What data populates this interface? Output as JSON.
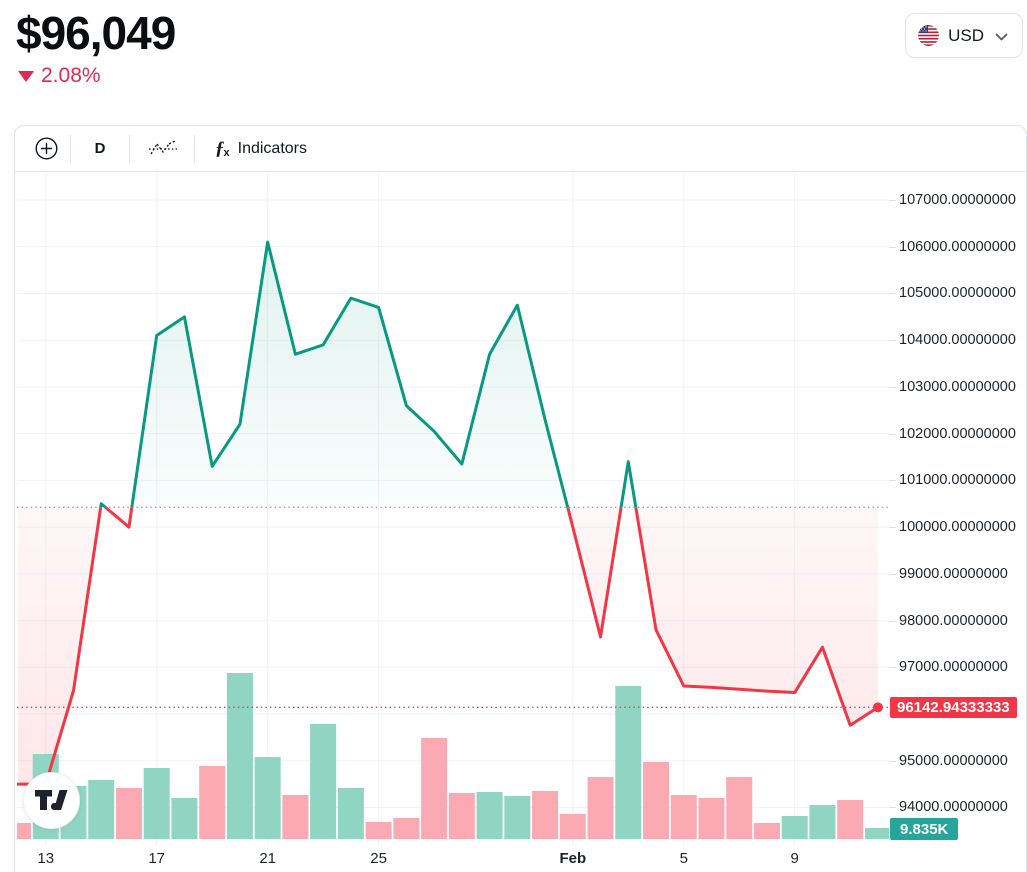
{
  "header": {
    "price": "$96,049",
    "change": "2.08%",
    "change_direction": "down",
    "currency": {
      "label": "USD",
      "flag": "us-flag"
    }
  },
  "toolbar": {
    "add_symbol_icon": "plus-circle",
    "interval": "D",
    "chart_style_icon": "baseline-style",
    "indicators_icon": "fx",
    "indicators_label": "Indicators"
  },
  "chart_data": {
    "type": "area",
    "subtype": "baseline-line-with-volume",
    "x": [
      "Jan 12",
      "Jan 13",
      "Jan 14",
      "Jan 15",
      "Jan 16",
      "Jan 17",
      "Jan 18",
      "Jan 19",
      "Jan 20",
      "Jan 21",
      "Jan 22",
      "Jan 23",
      "Jan 24",
      "Jan 25",
      "Jan 26",
      "Jan 27",
      "Jan 28",
      "Jan 29",
      "Jan 30",
      "Jan 31",
      "Feb 1",
      "Feb 2",
      "Feb 3",
      "Feb 4",
      "Feb 5",
      "Feb 6",
      "Feb 7",
      "Feb 8",
      "Feb 9",
      "Feb 10",
      "Feb 11",
      "Feb 12"
    ],
    "price": [
      94500,
      94500,
      96500,
      100500,
      100000,
      104100,
      104500,
      101300,
      102200,
      106100,
      103700,
      103900,
      104900,
      104700,
      102600,
      102050,
      101350,
      103700,
      104750,
      102300,
      100000,
      97650,
      101400,
      97800,
      96600,
      96570,
      96530,
      96490,
      96460,
      97430,
      95760,
      96142.94333333
    ],
    "baseline_value": 100424,
    "last_price": 96142.94333333,
    "last_price_label": "96142.94333333",
    "last_volume_label": "9.835K",
    "y_axis": {
      "top_value": 107000,
      "bottom_value": 94000,
      "tick_step": 1000,
      "tick_labels": [
        "107000.00000000",
        "106000.00000000",
        "105000.00000000",
        "104000.00000000",
        "103000.00000000",
        "102000.00000000",
        "101000.00000000",
        "100000.00000000",
        "99000.00000000",
        "98000.00000000",
        "97000.00000000",
        "96000.00000000",
        "95000.00000000",
        "94000.00000000"
      ]
    },
    "x_ticks": [
      {
        "label": "13",
        "index": 1,
        "bold": false
      },
      {
        "label": "17",
        "index": 5,
        "bold": false
      },
      {
        "label": "21",
        "index": 9,
        "bold": false
      },
      {
        "label": "25",
        "index": 13,
        "bold": false
      },
      {
        "label": "Feb",
        "index": 20,
        "bold": true
      },
      {
        "label": "5",
        "index": 24,
        "bold": false
      },
      {
        "label": "9",
        "index": 28,
        "bold": false
      }
    ],
    "volume_bars": {
      "unit": "relative pixel height; last bar labeled 9.835K",
      "heights": [
        16,
        85,
        53,
        59,
        51,
        71,
        41,
        73,
        166,
        82,
        44,
        115,
        51,
        17,
        21,
        101,
        46,
        47,
        43,
        48,
        25,
        62,
        153,
        77,
        44,
        41,
        62,
        16,
        23,
        34,
        39,
        11
      ],
      "directions": [
        "down",
        "up",
        "up",
        "up",
        "down",
        "up",
        "up",
        "down",
        "up",
        "up",
        "down",
        "up",
        "up",
        "down",
        "down",
        "down",
        "down",
        "up",
        "up",
        "down",
        "down",
        "down",
        "up",
        "down",
        "down",
        "down",
        "down",
        "down",
        "up",
        "up",
        "down",
        "up"
      ]
    },
    "legend_position": "none",
    "grid": true
  },
  "colors": {
    "up_line": "#089981",
    "down_line": "#f23645",
    "volume_up": "#8fd5c2",
    "volume_down": "#fbaab4",
    "price_badge_bg": "#f23645",
    "volume_badge_bg": "#26a69a",
    "change_text": "#e22950",
    "grid": "#f0f2f6",
    "baseline_dots": "#9aa0ab"
  }
}
